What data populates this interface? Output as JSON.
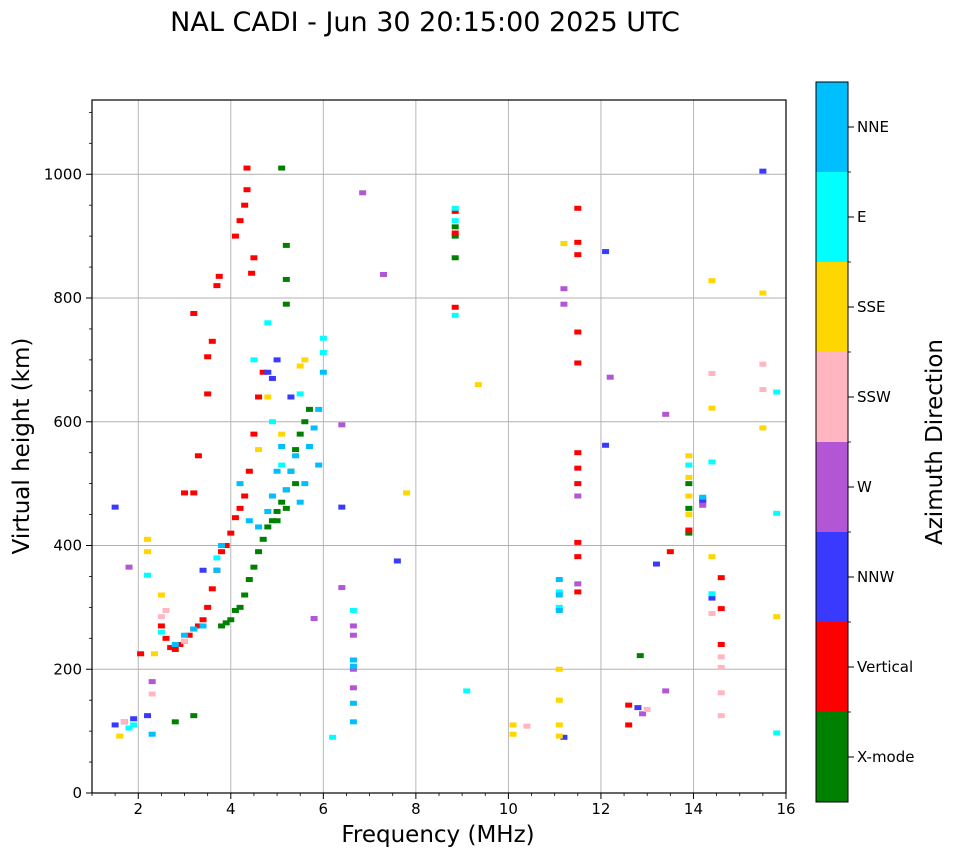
{
  "chart_data": {
    "type": "scatter",
    "title": "NAL CADI - Jun 30 20:15:00 2025 UTC",
    "xlabel": "Frequency (MHz)",
    "ylabel": "Virtual height (km)",
    "xlim": [
      1,
      16
    ],
    "ylim": [
      0,
      1120
    ],
    "xticks": [
      2,
      4,
      6,
      8,
      10,
      12,
      14,
      16
    ],
    "yticks": [
      0,
      200,
      400,
      600,
      800,
      1000
    ],
    "grid": true,
    "colorbar": {
      "label": "Azimuth Direction",
      "categories": [
        {
          "name": "X-mode",
          "color": "#008000"
        },
        {
          "name": "Vertical",
          "color": "#ff0000"
        },
        {
          "name": "NNW",
          "color": "#3a3aff"
        },
        {
          "name": "W",
          "color": "#b356d6"
        },
        {
          "name": "SSW",
          "color": "#ffb6c1"
        },
        {
          "name": "SSE",
          "color": "#ffd700"
        },
        {
          "name": "E",
          "color": "#00ffff"
        },
        {
          "name": "NNE",
          "color": "#00bfff"
        }
      ]
    },
    "series": [
      {
        "name": "X-mode",
        "points": [
          [
            2.8,
            115
          ],
          [
            3.2,
            125
          ],
          [
            3.8,
            270
          ],
          [
            3.9,
            275
          ],
          [
            4.0,
            280
          ],
          [
            4.1,
            295
          ],
          [
            4.2,
            300
          ],
          [
            4.3,
            320
          ],
          [
            4.4,
            345
          ],
          [
            4.5,
            365
          ],
          [
            4.6,
            390
          ],
          [
            4.7,
            410
          ],
          [
            4.8,
            430
          ],
          [
            4.9,
            440
          ],
          [
            5.0,
            455
          ],
          [
            5.1,
            470
          ],
          [
            5.2,
            490
          ],
          [
            5.3,
            520
          ],
          [
            5.4,
            555
          ],
          [
            5.5,
            580
          ],
          [
            5.6,
            600
          ],
          [
            5.7,
            620
          ],
          [
            5.0,
            440
          ],
          [
            5.2,
            460
          ],
          [
            5.4,
            500
          ],
          [
            5.1,
            1010
          ],
          [
            5.2,
            885
          ],
          [
            5.2,
            830
          ],
          [
            5.2,
            790
          ],
          [
            8.85,
            900
          ],
          [
            8.85,
            915
          ],
          [
            8.85,
            865
          ],
          [
            12.85,
            222
          ],
          [
            13.9,
            420
          ],
          [
            13.9,
            460
          ],
          [
            13.9,
            500
          ]
        ]
      },
      {
        "name": "Vertical",
        "points": [
          [
            2.05,
            225
          ],
          [
            2.5,
            270
          ],
          [
            2.6,
            250
          ],
          [
            2.7,
            235
          ],
          [
            2.8,
            232
          ],
          [
            2.9,
            240
          ],
          [
            3.0,
            245
          ],
          [
            3.1,
            255
          ],
          [
            3.2,
            265
          ],
          [
            3.3,
            270
          ],
          [
            3.4,
            280
          ],
          [
            3.5,
            300
          ],
          [
            3.6,
            330
          ],
          [
            3.7,
            360
          ],
          [
            3.8,
            390
          ],
          [
            3.9,
            400
          ],
          [
            4.0,
            420
          ],
          [
            4.1,
            445
          ],
          [
            4.2,
            460
          ],
          [
            4.3,
            480
          ],
          [
            4.4,
            520
          ],
          [
            4.5,
            580
          ],
          [
            4.6,
            640
          ],
          [
            4.7,
            680
          ],
          [
            4.1,
            900
          ],
          [
            4.2,
            925
          ],
          [
            4.3,
            950
          ],
          [
            4.35,
            1010
          ],
          [
            4.35,
            975
          ],
          [
            4.45,
            840
          ],
          [
            4.5,
            865
          ],
          [
            3.7,
            820
          ],
          [
            3.75,
            835
          ],
          [
            3.6,
            730
          ],
          [
            3.5,
            645
          ],
          [
            3.3,
            545
          ],
          [
            3.2,
            485
          ],
          [
            3.0,
            485
          ],
          [
            3.2,
            775
          ],
          [
            3.5,
            705
          ],
          [
            8.85,
            940
          ],
          [
            8.85,
            905
          ],
          [
            8.85,
            785
          ],
          [
            11.5,
            945
          ],
          [
            11.5,
            890
          ],
          [
            11.5,
            870
          ],
          [
            11.5,
            745
          ],
          [
            11.5,
            695
          ],
          [
            11.5,
            550
          ],
          [
            11.5,
            525
          ],
          [
            11.5,
            500
          ],
          [
            11.5,
            405
          ],
          [
            11.5,
            382
          ],
          [
            11.5,
            325
          ],
          [
            12.6,
            142
          ],
          [
            12.6,
            110
          ],
          [
            13.5,
            390
          ],
          [
            13.9,
            425
          ],
          [
            14.6,
            348
          ],
          [
            14.6,
            298
          ],
          [
            14.6,
            240
          ]
        ]
      },
      {
        "name": "NNW",
        "points": [
          [
            1.5,
            110
          ],
          [
            1.7,
            115
          ],
          [
            1.9,
            120
          ],
          [
            2.2,
            125
          ],
          [
            1.5,
            462
          ],
          [
            3.4,
            360
          ],
          [
            4.8,
            680
          ],
          [
            4.9,
            670
          ],
          [
            5.0,
            700
          ],
          [
            5.3,
            640
          ],
          [
            6.4,
            462
          ],
          [
            7.6,
            375
          ],
          [
            11.2,
            90
          ],
          [
            12.1,
            875
          ],
          [
            12.1,
            562
          ],
          [
            13.2,
            370
          ],
          [
            14.2,
            475
          ],
          [
            14.2,
            470
          ],
          [
            14.4,
            315
          ],
          [
            15.5,
            1005
          ],
          [
            12.8,
            138
          ]
        ]
      },
      {
        "name": "W",
        "points": [
          [
            1.8,
            365
          ],
          [
            2.3,
            180
          ],
          [
            6.4,
            595
          ],
          [
            6.4,
            332
          ],
          [
            6.65,
            270
          ],
          [
            6.65,
            255
          ],
          [
            6.65,
            200
          ],
          [
            6.65,
            170
          ],
          [
            6.85,
            970
          ],
          [
            7.3,
            838
          ],
          [
            11.2,
            815
          ],
          [
            11.2,
            790
          ],
          [
            11.5,
            338
          ],
          [
            11.5,
            480
          ],
          [
            12.2,
            672
          ],
          [
            13.4,
            612
          ],
          [
            13.4,
            165
          ],
          [
            12.9,
            128
          ],
          [
            14.2,
            465
          ],
          [
            5.8,
            282
          ]
        ]
      },
      {
        "name": "SSW",
        "points": [
          [
            1.7,
            115
          ],
          [
            2.3,
            160
          ],
          [
            2.5,
            285
          ],
          [
            2.6,
            295
          ],
          [
            3.0,
            245
          ],
          [
            10.4,
            108
          ],
          [
            14.4,
            678
          ],
          [
            14.4,
            290
          ],
          [
            14.6,
            220
          ],
          [
            14.6,
            203
          ],
          [
            14.6,
            162
          ],
          [
            14.6,
            125
          ],
          [
            15.5,
            693
          ],
          [
            15.5,
            652
          ],
          [
            13.0,
            135
          ]
        ]
      },
      {
        "name": "SSE",
        "points": [
          [
            1.6,
            92
          ],
          [
            2.2,
            410
          ],
          [
            2.2,
            390
          ],
          [
            2.35,
            225
          ],
          [
            2.5,
            320
          ],
          [
            4.6,
            555
          ],
          [
            4.8,
            640
          ],
          [
            5.1,
            580
          ],
          [
            5.5,
            690
          ],
          [
            5.6,
            700
          ],
          [
            7.8,
            485
          ],
          [
            9.35,
            660
          ],
          [
            10.1,
            110
          ],
          [
            10.1,
            95
          ],
          [
            11.1,
            200
          ],
          [
            11.1,
            150
          ],
          [
            11.1,
            110
          ],
          [
            11.1,
            92
          ],
          [
            11.2,
            888
          ],
          [
            13.9,
            545
          ],
          [
            13.9,
            510
          ],
          [
            13.9,
            480
          ],
          [
            13.9,
            450
          ],
          [
            14.4,
            828
          ],
          [
            14.4,
            622
          ],
          [
            14.4,
            382
          ],
          [
            15.5,
            808
          ],
          [
            15.5,
            590
          ],
          [
            15.8,
            285
          ]
        ]
      },
      {
        "name": "E",
        "points": [
          [
            1.8,
            105
          ],
          [
            1.9,
            110
          ],
          [
            2.2,
            352
          ],
          [
            2.5,
            260
          ],
          [
            3.7,
            380
          ],
          [
            4.5,
            700
          ],
          [
            4.8,
            760
          ],
          [
            4.9,
            600
          ],
          [
            5.1,
            530
          ],
          [
            5.5,
            645
          ],
          [
            6.0,
            712
          ],
          [
            6.0,
            735
          ],
          [
            6.2,
            90
          ],
          [
            6.65,
            295
          ],
          [
            8.85,
            945
          ],
          [
            8.85,
            925
          ],
          [
            8.85,
            772
          ],
          [
            9.1,
            165
          ],
          [
            11.1,
            325
          ],
          [
            11.1,
            300
          ],
          [
            14.4,
            535
          ],
          [
            14.4,
            322
          ],
          [
            15.8,
            648
          ],
          [
            15.8,
            452
          ],
          [
            15.8,
            97
          ],
          [
            13.9,
            530
          ]
        ]
      },
      {
        "name": "NNE",
        "points": [
          [
            2.3,
            95
          ],
          [
            2.8,
            240
          ],
          [
            3.0,
            255
          ],
          [
            3.2,
            265
          ],
          [
            3.4,
            270
          ],
          [
            3.7,
            360
          ],
          [
            3.8,
            400
          ],
          [
            4.2,
            500
          ],
          [
            4.4,
            440
          ],
          [
            4.6,
            430
          ],
          [
            4.8,
            455
          ],
          [
            4.9,
            480
          ],
          [
            5.0,
            520
          ],
          [
            5.1,
            560
          ],
          [
            5.2,
            490
          ],
          [
            5.3,
            520
          ],
          [
            5.4,
            545
          ],
          [
            5.5,
            470
          ],
          [
            5.6,
            500
          ],
          [
            5.7,
            560
          ],
          [
            5.8,
            590
          ],
          [
            5.9,
            620
          ],
          [
            6.0,
            680
          ],
          [
            5.9,
            530
          ],
          [
            6.65,
            215
          ],
          [
            6.65,
            205
          ],
          [
            6.65,
            145
          ],
          [
            6.65,
            115
          ],
          [
            11.1,
            345
          ],
          [
            11.1,
            320
          ],
          [
            11.1,
            295
          ],
          [
            14.2,
            478
          ]
        ]
      }
    ]
  }
}
